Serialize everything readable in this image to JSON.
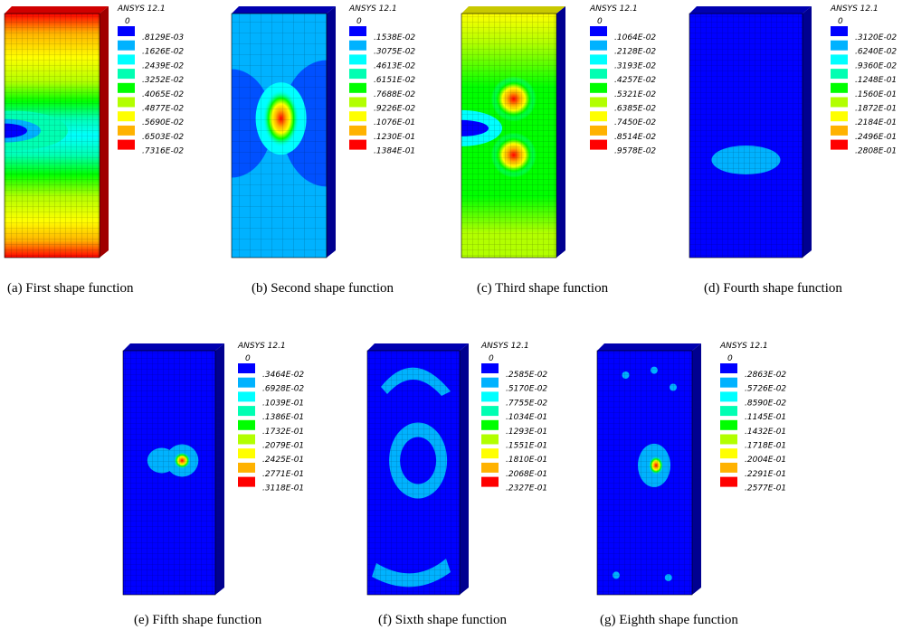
{
  "panels": [
    {
      "software": "ANSYS 12.1",
      "legend": [
        "0",
        ".8129E-03",
        ".1626E-02",
        ".2439E-02",
        ".3252E-02",
        ".4065E-02",
        ".4877E-02",
        ".5690E-02",
        ".6503E-02",
        ".7316E-02"
      ],
      "caption": "(a)  First shape function"
    },
    {
      "software": "ANSYS 12.1",
      "legend": [
        "0",
        ".1538E-02",
        ".3075E-02",
        ".4613E-02",
        ".6151E-02",
        ".7688E-02",
        ".9226E-02",
        ".1076E-01",
        ".1230E-01",
        ".1384E-01"
      ],
      "caption": "(b)  Second shape function"
    },
    {
      "software": "ANSYS 12.1",
      "legend": [
        "0",
        ".1064E-02",
        ".2128E-02",
        ".3193E-02",
        ".4257E-02",
        ".5321E-02",
        ".6385E-02",
        ".7450E-02",
        ".8514E-02",
        ".9578E-02"
      ],
      "caption": "(c)  Third shape function"
    },
    {
      "software": "ANSYS 12.1",
      "legend": [
        "0",
        ".3120E-02",
        ".6240E-02",
        ".9360E-02",
        ".1248E-01",
        ".1560E-01",
        ".1872E-01",
        ".2184E-01",
        ".2496E-01",
        ".2808E-01"
      ],
      "caption": "(d)  Fourth shape function"
    },
    {
      "software": "ANSYS 12.1",
      "legend": [
        "0",
        ".3464E-02",
        ".6928E-02",
        ".1039E-01",
        ".1386E-01",
        ".1732E-01",
        ".2079E-01",
        ".2425E-01",
        ".2771E-01",
        ".3118E-01"
      ],
      "caption": "(e)  Fifth shape function"
    },
    {
      "software": "ANSYS 12.1",
      "legend": [
        "0",
        ".2585E-02",
        ".5170E-02",
        ".7755E-02",
        ".1034E-01",
        ".1293E-01",
        ".1551E-01",
        ".1810E-01",
        ".2068E-01",
        ".2327E-01"
      ],
      "caption": "(f)  Sixth shape function"
    },
    {
      "software": "ANSYS 12.1",
      "legend": [
        "0",
        ".2863E-02",
        ".5726E-02",
        ".8590E-02",
        ".1145E-01",
        ".1432E-01",
        ".1718E-01",
        ".2004E-01",
        ".2291E-01",
        ".2577E-01"
      ],
      "caption": "(g)  Eighth shape function"
    }
  ]
}
